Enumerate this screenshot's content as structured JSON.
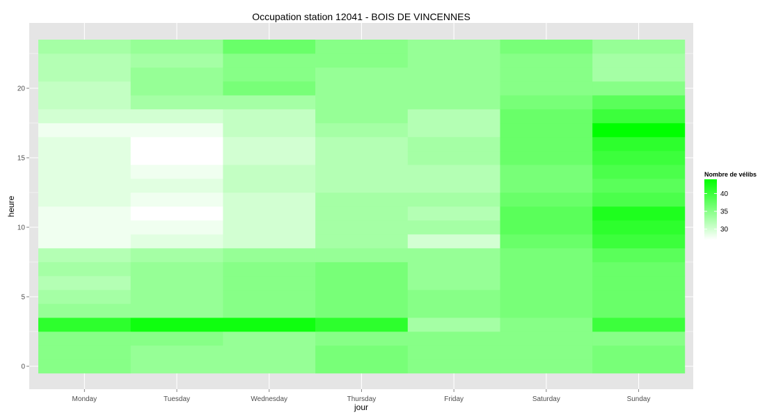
{
  "chart_data": {
    "type": "heatmap",
    "title": "Occupation station 12041 - BOIS DE VINCENNES",
    "xlabel": "jour",
    "ylabel": "heure",
    "x_categories": [
      "Monday",
      "Tuesday",
      "Wednesday",
      "Thursday",
      "Friday",
      "Saturday",
      "Sunday"
    ],
    "y_hours": [
      0,
      1,
      2,
      3,
      4,
      5,
      6,
      7,
      8,
      9,
      10,
      11,
      12,
      13,
      14,
      15,
      16,
      17,
      18,
      19,
      20,
      21,
      22,
      23
    ],
    "y_ticks": [
      0,
      5,
      10,
      15,
      20
    ],
    "ylim": [
      -0.5,
      23.5
    ],
    "grid": true,
    "legend": {
      "title": "Nombre de vélibs",
      "position": "right",
      "ticks": [
        30,
        35,
        40
      ],
      "range": [
        27,
        44
      ],
      "low_color": "#ffffff",
      "high_color": "#00ff00"
    },
    "values": {
      "Monday": [
        35,
        35,
        35,
        41,
        34,
        33,
        32,
        33,
        32,
        28,
        28,
        28,
        29,
        29,
        29,
        29,
        29,
        28,
        30,
        31,
        31,
        32,
        32,
        33
      ],
      "Tuesday": [
        34,
        34,
        35,
        43,
        34,
        34,
        34,
        34,
        33,
        29,
        28,
        27,
        28,
        29,
        28,
        27,
        27,
        28,
        30,
        33,
        34,
        34,
        33,
        34
      ],
      "Wednesday": [
        34,
        34,
        34,
        43,
        35,
        35,
        35,
        35,
        34,
        30,
        30,
        30,
        30,
        31,
        31,
        30,
        30,
        31,
        31,
        33,
        36,
        35,
        35,
        37
      ],
      "Thursday": [
        36,
        36,
        35,
        41,
        36,
        36,
        36,
        36,
        34,
        33,
        33,
        33,
        33,
        32,
        32,
        32,
        32,
        33,
        34,
        34,
        34,
        34,
        35,
        35
      ],
      "Friday": [
        35,
        35,
        35,
        33,
        35,
        35,
        34,
        34,
        34,
        30,
        33,
        32,
        33,
        32,
        32,
        33,
        33,
        32,
        32,
        34,
        34,
        34,
        34,
        34
      ],
      "Saturday": [
        35,
        35,
        35,
        35,
        36,
        36,
        36,
        36,
        36,
        37,
        38,
        38,
        37,
        36,
        36,
        37,
        37,
        37,
        37,
        36,
        35,
        35,
        35,
        36
      ],
      "Sunday": [
        36,
        36,
        35,
        40,
        37,
        37,
        37,
        37,
        38,
        40,
        41,
        42,
        39,
        38,
        39,
        40,
        41,
        44,
        40,
        38,
        35,
        33,
        33,
        34
      ]
    }
  }
}
